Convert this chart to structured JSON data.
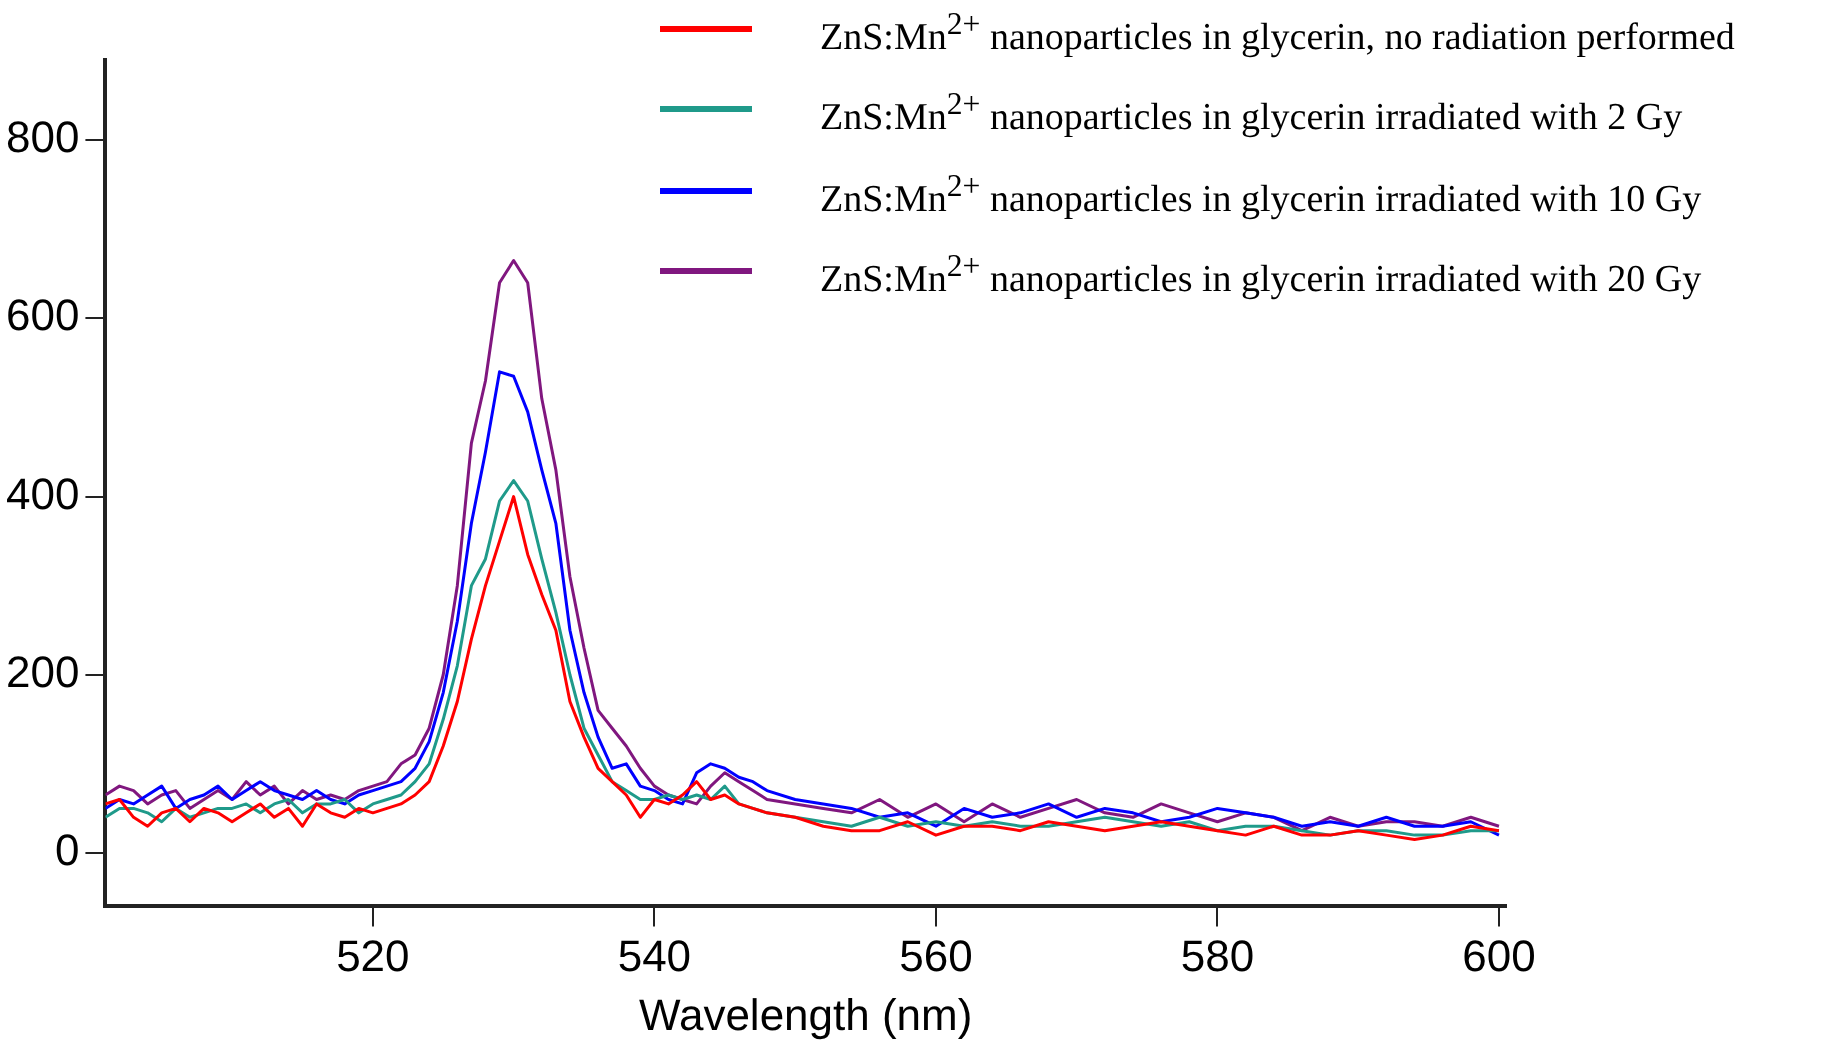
{
  "chart_data": {
    "type": "line",
    "xlabel": "Wavelength (nm)",
    "xlim": [
      501,
      600.5
    ],
    "ylim": [
      -60,
      890
    ],
    "xticks": [
      520,
      540,
      560,
      580,
      600
    ],
    "yticks": [
      0,
      200,
      400,
      600,
      800
    ],
    "grid": false,
    "legend": "top right",
    "marker": "none",
    "line_style": "solid",
    "x": [
      501,
      502,
      503,
      504,
      505,
      506,
      507,
      508,
      509,
      510,
      511,
      512,
      513,
      514,
      515,
      516,
      517,
      518,
      519,
      520,
      521,
      522,
      523,
      524,
      525,
      526,
      527,
      528,
      529,
      530,
      531,
      532,
      533,
      534,
      535,
      536,
      537,
      538,
      539,
      540,
      541,
      542,
      543,
      544,
      545,
      546,
      547,
      548,
      550,
      552,
      554,
      556,
      558,
      560,
      562,
      564,
      566,
      568,
      570,
      572,
      574,
      576,
      578,
      580,
      582,
      584,
      586,
      588,
      590,
      592,
      594,
      596,
      598,
      600
    ],
    "series": [
      {
        "name": "ZnS:Mn$^{2+}$ nanoparticles in glycerin, no radiation performed",
        "color": "#ff0000",
        "values": [
          55,
          60,
          40,
          30,
          45,
          50,
          35,
          50,
          45,
          35,
          45,
          55,
          40,
          50,
          30,
          55,
          45,
          40,
          50,
          45,
          50,
          55,
          65,
          80,
          120,
          170,
          240,
          300,
          350,
          400,
          335,
          290,
          250,
          170,
          130,
          95,
          80,
          65,
          40,
          60,
          55,
          65,
          80,
          60,
          65,
          55,
          50,
          45,
          40,
          30,
          25,
          25,
          35,
          20,
          30,
          30,
          25,
          35,
          30,
          25,
          30,
          35,
          30,
          25,
          20,
          30,
          20,
          20,
          25,
          20,
          15,
          20,
          30,
          25
        ]
      },
      {
        "name": "ZnS:Mn$^{2+}$ nanoparticles in glycerin irradiated with 2 Gy",
        "color": "#1f9a8a",
        "values": [
          40,
          50,
          50,
          45,
          35,
          50,
          40,
          45,
          50,
          50,
          55,
          45,
          55,
          60,
          45,
          55,
          55,
          60,
          45,
          55,
          60,
          65,
          80,
          100,
          150,
          210,
          300,
          330,
          395,
          418,
          395,
          330,
          270,
          200,
          140,
          110,
          80,
          70,
          60,
          60,
          65,
          60,
          65,
          60,
          75,
          55,
          50,
          45,
          40,
          35,
          30,
          40,
          30,
          35,
          30,
          35,
          30,
          30,
          35,
          40,
          35,
          30,
          35,
          25,
          30,
          30,
          25,
          20,
          25,
          25,
          20,
          20,
          25,
          25
        ]
      },
      {
        "name": "ZnS:Mn$^{2+}$ nanoparticles in glycerin irradiated with 10 Gy",
        "color": "#0000ff",
        "values": [
          50,
          60,
          55,
          65,
          75,
          50,
          60,
          65,
          75,
          60,
          70,
          80,
          70,
          65,
          60,
          70,
          60,
          55,
          65,
          70,
          75,
          80,
          95,
          125,
          180,
          260,
          370,
          450,
          540,
          535,
          495,
          430,
          370,
          250,
          180,
          130,
          95,
          100,
          75,
          70,
          60,
          55,
          90,
          100,
          95,
          85,
          80,
          70,
          60,
          55,
          50,
          40,
          45,
          30,
          50,
          40,
          45,
          55,
          40,
          50,
          45,
          35,
          40,
          50,
          45,
          40,
          30,
          35,
          30,
          40,
          30,
          30,
          35,
          20
        ]
      },
      {
        "name": "ZnS:Mn$^{2+}$ nanoparticles in glycerin irradiated with 20 Gy",
        "color": "#80177f",
        "values": [
          65,
          75,
          70,
          55,
          65,
          70,
          50,
          60,
          70,
          60,
          80,
          65,
          75,
          55,
          70,
          60,
          65,
          60,
          70,
          75,
          80,
          100,
          110,
          140,
          200,
          300,
          460,
          530,
          640,
          665,
          640,
          510,
          430,
          310,
          230,
          160,
          140,
          120,
          95,
          75,
          65,
          60,
          55,
          75,
          90,
          80,
          70,
          60,
          55,
          50,
          45,
          60,
          40,
          55,
          35,
          55,
          40,
          50,
          60,
          45,
          40,
          55,
          45,
          35,
          45,
          40,
          25,
          40,
          30,
          35,
          35,
          30,
          40,
          30
        ]
      }
    ]
  }
}
